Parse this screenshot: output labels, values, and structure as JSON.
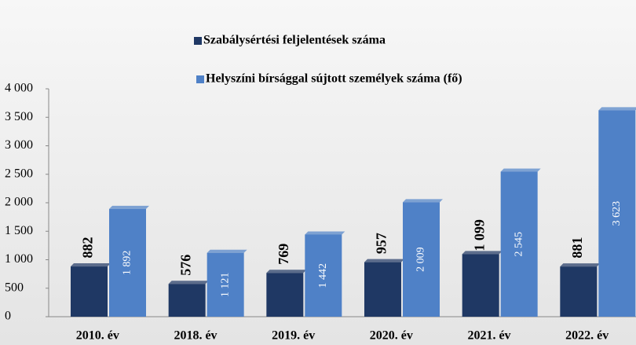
{
  "chart_data": {
    "type": "bar",
    "categories": [
      "2010. év",
      "2018. év",
      "2019. év",
      "2020. év",
      "2021. év",
      "2022. év"
    ],
    "series": [
      {
        "name": "Szabálysértési feljelentések száma",
        "color": "#1f3864",
        "values": [
          882,
          576,
          769,
          957,
          1099,
          881
        ],
        "value_labels": [
          "882",
          "576",
          "769",
          "957",
          "1 099",
          "881"
        ]
      },
      {
        "name": "Helyszíni bírsággal sújtott személyek száma (fő)",
        "color": "#4f81c7",
        "values": [
          1892,
          1121,
          1442,
          2009,
          2545,
          3623
        ],
        "value_labels": [
          "1 892",
          "1 121",
          "1 442",
          "2 009",
          "2 545",
          "3 623"
        ]
      }
    ],
    "ylim": [
      0,
      4000
    ],
    "yticks": [
      0,
      500,
      {
        "value": 1000,
        "label": "1 000"
      },
      {
        "value": 1500,
        "label": "1 500"
      },
      {
        "value": 2000,
        "label": "2 000"
      },
      {
        "value": 2500,
        "label": "2 500"
      },
      {
        "value": 3000,
        "label": "3 000"
      },
      {
        "value": 3500,
        "label": "3 500"
      },
      {
        "value": 4000,
        "label": "4 000"
      }
    ],
    "grid": false
  }
}
